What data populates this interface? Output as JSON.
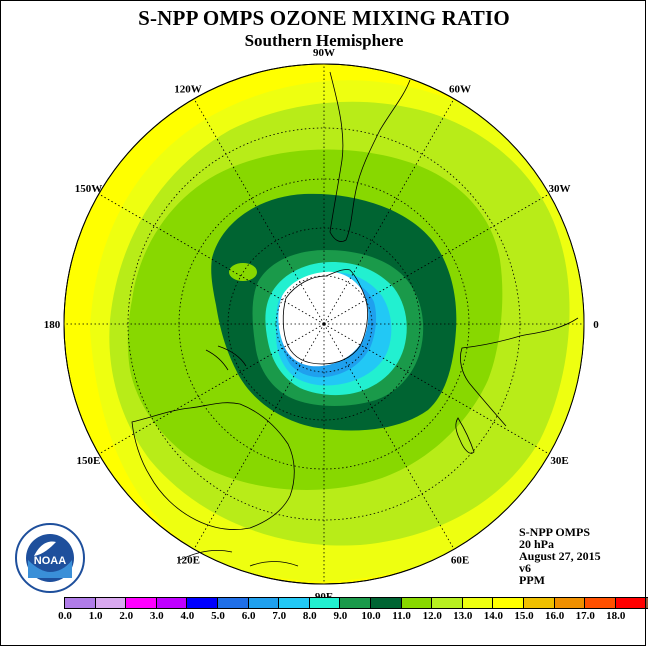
{
  "title": "S-NPP OMPS OZONE MIXING RATIO",
  "subtitle": "Southern Hemisphere",
  "longitude_labels": [
    {
      "text": "90W",
      "angle": 90
    },
    {
      "text": "60W",
      "angle": 60
    },
    {
      "text": "30W",
      "angle": 30
    },
    {
      "text": "0",
      "angle": 0
    },
    {
      "text": "30E",
      "angle": -30
    },
    {
      "text": "60E",
      "angle": -60
    },
    {
      "text": "90E",
      "angle": -90
    },
    {
      "text": "120E",
      "angle": -120
    },
    {
      "text": "150E",
      "angle": -150
    },
    {
      "text": "180",
      "angle": 180
    },
    {
      "text": "150W",
      "angle": 150
    },
    {
      "text": "120W",
      "angle": 120
    }
  ],
  "info": {
    "instrument": "S-NPP OMPS",
    "level": "20 hPa",
    "date": "August 27, 2015",
    "version": "v6",
    "units": "PPM"
  },
  "logo": {
    "text": "NOAA",
    "name": "noaa-logo"
  },
  "colorbar": {
    "colors": [
      "#b07ce8",
      "#d9a8f0",
      "#ff00ff",
      "#c000ff",
      "#0000ff",
      "#1f6fe8",
      "#1fa0ee",
      "#22c8f5",
      "#22f0d0",
      "#1a9a4a",
      "#006432",
      "#88d800",
      "#b8f020",
      "#eeff10",
      "#ffff00",
      "#f0c000",
      "#f09000",
      "#ff5000",
      "#ff0000",
      "#8b5a3c"
    ],
    "ticks": [
      "0.0",
      "1.0",
      "2.0",
      "3.0",
      "4.0",
      "5.0",
      "6.0",
      "7.0",
      "8.0",
      "9.0",
      "10.0",
      "11.0",
      "12.0",
      "13.0",
      "14.0",
      "15.0",
      "16.0",
      "17.0",
      "18.0"
    ]
  }
}
